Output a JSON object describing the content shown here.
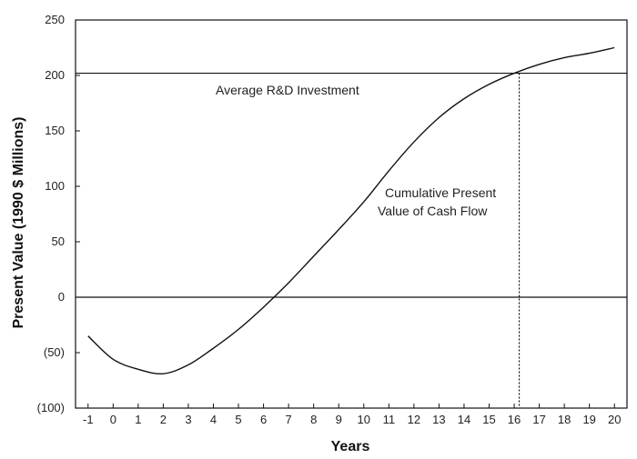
{
  "chart_data": {
    "type": "line",
    "title": "",
    "xlabel": "Years",
    "ylabel": "Present Value (1990 $ Millions)",
    "xlim": [
      -1.5,
      20.5
    ],
    "ylim": [
      -100,
      250
    ],
    "x_ticks": [
      -1,
      0,
      1,
      2,
      3,
      4,
      5,
      6,
      7,
      8,
      9,
      10,
      11,
      12,
      13,
      14,
      15,
      16,
      17,
      18,
      19,
      20
    ],
    "x_tick_labels": [
      "-1",
      "0",
      "1",
      "2",
      "3",
      "4",
      "5",
      "6",
      "7",
      "8",
      "9",
      "10",
      "11",
      "12",
      "13",
      "14",
      "15",
      "16",
      "17",
      "18",
      "19",
      "20"
    ],
    "y_ticks": [
      -100,
      -50,
      0,
      50,
      100,
      150,
      200,
      250
    ],
    "y_tick_labels": [
      "(100)",
      "(50)",
      "0",
      "50",
      "100",
      "150",
      "200",
      "250"
    ],
    "grid": false,
    "series": [
      {
        "name": "Cumulative Present Value of Cash Flow",
        "x": [
          -1,
          0,
          1,
          2,
          3,
          4,
          5,
          6,
          7,
          8,
          9,
          10,
          11,
          12,
          13,
          14,
          15,
          16,
          17,
          18,
          19,
          20
        ],
        "y": [
          -35,
          -56,
          -65,
          -69,
          -61,
          -46,
          -29,
          -9,
          13,
          37,
          61,
          86,
          114,
          140,
          162,
          179,
          192,
          202,
          210,
          216,
          220,
          225
        ]
      }
    ],
    "reference_lines": [
      {
        "orientation": "horizontal",
        "value": 202,
        "label": "Average R&D Investment",
        "style": "solid"
      },
      {
        "orientation": "horizontal",
        "value": 0,
        "label": "",
        "style": "solid"
      },
      {
        "orientation": "vertical",
        "value": 16.2,
        "label": "",
        "style": "dotted"
      }
    ],
    "annotations": [
      {
        "text": "Average R&D Investment"
      },
      {
        "text_lines": [
          "Cumulative Present",
          "Value of Cash Flow"
        ]
      }
    ]
  }
}
